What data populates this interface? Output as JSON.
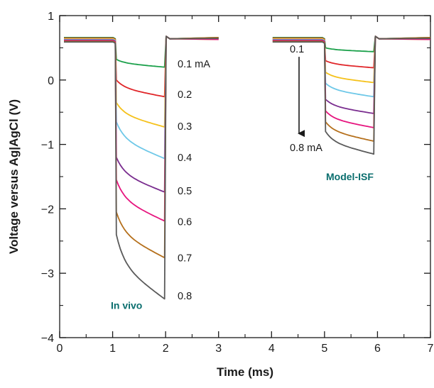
{
  "chart_data": {
    "type": "line",
    "xlabel": "Time (ms)",
    "ylabel": "Voltage versus Ag|AgCl (V)",
    "xlim": [
      0,
      7
    ],
    "ylim": [
      -4,
      1
    ],
    "xticks": [
      0,
      1,
      2,
      3,
      4,
      5,
      6,
      7
    ],
    "yticks": [
      1,
      0,
      -1,
      -2,
      -3,
      -4
    ],
    "xtick_labels": [
      "0",
      "1",
      "2",
      "3",
      "4",
      "5",
      "6",
      "7"
    ],
    "ytick_labels": [
      "1",
      "0",
      "−1",
      "−2",
      "−3",
      "−4"
    ],
    "grid": false,
    "baseline_voltage": 0.66,
    "panels": [
      {
        "name": "In vivo",
        "color": "#0a6e6e",
        "pulse_start": 1.05,
        "pulse_end": 2.0,
        "series": [
          {
            "name": "0.1 mA",
            "color": "#1aa04a",
            "start": 0.32,
            "end": 0.2
          },
          {
            "name": "0.2",
            "color": "#e02428",
            "start": 0.0,
            "end": -0.26
          },
          {
            "name": "0.3",
            "color": "#f5c11a",
            "start": -0.35,
            "end": -0.73
          },
          {
            "name": "0.4",
            "color": "#6ec8e8",
            "start": -0.65,
            "end": -1.22
          },
          {
            "name": "0.5",
            "color": "#7a2d8f",
            "start": -1.2,
            "end": -1.74
          },
          {
            "name": "0.6",
            "color": "#e6147e",
            "start": -1.55,
            "end": -2.19
          },
          {
            "name": "0.7",
            "color": "#b5701c",
            "start": -2.05,
            "end": -2.76
          },
          {
            "name": "0.8",
            "color": "#5a5a5a",
            "start": -2.4,
            "end": -3.4
          }
        ],
        "labels": [
          "0.1 mA",
          "0.2",
          "0.3",
          "0.4",
          "0.5",
          "0.6",
          "0.7",
          "0.8"
        ]
      },
      {
        "name": "Model-ISF",
        "color": "#0a6e6e",
        "pulse_start": 5.0,
        "pulse_end": 5.95,
        "series": [
          {
            "name": "0.1",
            "color": "#1aa04a",
            "start": 0.5,
            "end": 0.44
          },
          {
            "name": "0.2",
            "color": "#e02428",
            "start": 0.3,
            "end": 0.19
          },
          {
            "name": "0.3",
            "color": "#f5c11a",
            "start": 0.12,
            "end": -0.04
          },
          {
            "name": "0.4",
            "color": "#6ec8e8",
            "start": -0.05,
            "end": -0.26
          },
          {
            "name": "0.5",
            "color": "#7a2d8f",
            "start": -0.3,
            "end": -0.52
          },
          {
            "name": "0.6",
            "color": "#e6147e",
            "start": -0.48,
            "end": -0.74
          },
          {
            "name": "0.7",
            "color": "#b5701c",
            "start": -0.65,
            "end": -0.95
          },
          {
            "name": "0.8 mA",
            "color": "#5a5a5a",
            "start": -0.8,
            "end": -1.15
          }
        ],
        "arrow_top_label": "0.1",
        "arrow_bottom_label": "0.8 mA"
      }
    ]
  }
}
